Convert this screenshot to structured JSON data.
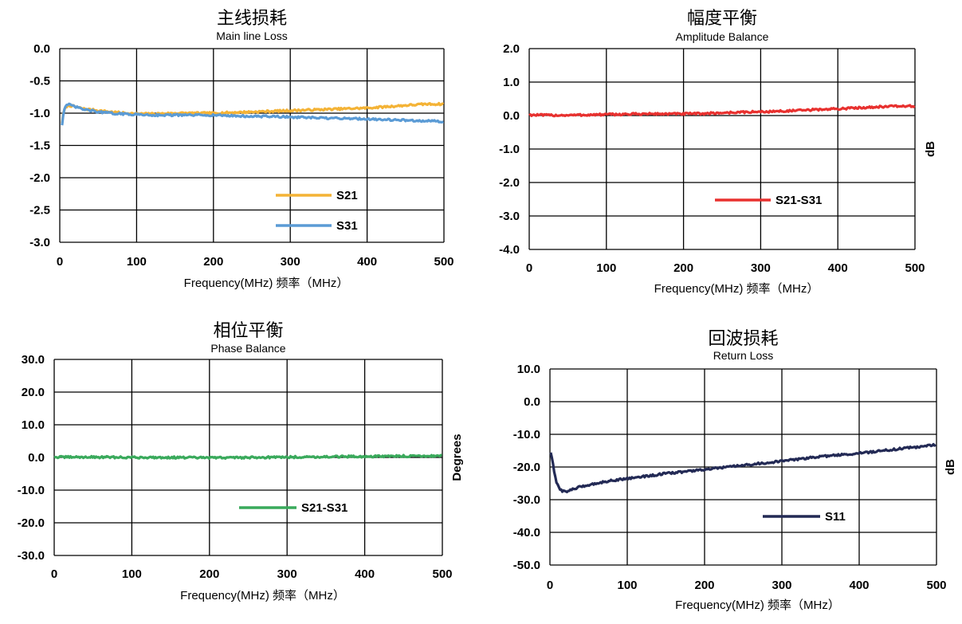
{
  "chart_data": [
    {
      "type": "line",
      "title": "主线损耗",
      "subtitle": "Main line Loss",
      "xlabel": "Frequency(MHz) 频率（MHz）",
      "ylabel": "",
      "xlim": [
        0,
        500
      ],
      "ylim": [
        -3.0,
        0.0
      ],
      "xticks": [
        "0",
        "100",
        "200",
        "300",
        "400",
        "500"
      ],
      "yticks": [
        "0.0",
        "-0.5",
        "-1.0",
        "-1.5",
        "-2.0",
        "-2.5",
        "-3.0"
      ],
      "grid": true,
      "legend_position": "bottom-right",
      "series": [
        {
          "name": "S21",
          "color": "#f4b336",
          "x": [
            3,
            5,
            8,
            12,
            20,
            30,
            50,
            75,
            100,
            125,
            150,
            175,
            200,
            225,
            250,
            275,
            300,
            325,
            350,
            375,
            400,
            425,
            450,
            475,
            500
          ],
          "y": [
            -1.15,
            -0.98,
            -0.9,
            -0.88,
            -0.9,
            -0.93,
            -0.96,
            -0.99,
            -1.01,
            -1.01,
            -1.0,
            -1.0,
            -1.0,
            -0.99,
            -0.98,
            -0.97,
            -0.96,
            -0.95,
            -0.94,
            -0.93,
            -0.92,
            -0.9,
            -0.88,
            -0.86,
            -0.86
          ]
        },
        {
          "name": "S31",
          "color": "#5b9bd5",
          "x": [
            3,
            5,
            8,
            12,
            20,
            30,
            50,
            75,
            100,
            125,
            150,
            175,
            200,
            225,
            250,
            275,
            300,
            325,
            350,
            375,
            400,
            425,
            450,
            475,
            500
          ],
          "y": [
            -1.18,
            -0.97,
            -0.88,
            -0.87,
            -0.9,
            -0.94,
            -0.98,
            -1.01,
            -1.02,
            -1.03,
            -1.03,
            -1.03,
            -1.03,
            -1.04,
            -1.05,
            -1.05,
            -1.06,
            -1.07,
            -1.08,
            -1.08,
            -1.09,
            -1.1,
            -1.11,
            -1.12,
            -1.13
          ]
        }
      ]
    },
    {
      "type": "line",
      "title": "幅度平衡",
      "subtitle": "Amplitude Balance",
      "xlabel": "Frequency(MHz) 频率（MHz）",
      "ylabel": "dB",
      "xlim": [
        0,
        500
      ],
      "ylim": [
        -4.0,
        2.0
      ],
      "xticks": [
        "0",
        "100",
        "200",
        "300",
        "400",
        "500"
      ],
      "yticks": [
        "2.0",
        "1.0",
        "0.0",
        "-1.0",
        "-2.0",
        "-3.0",
        "-4.0"
      ],
      "grid": true,
      "legend_position": "bottom-right",
      "series": [
        {
          "name": "S21-S31",
          "color": "#e8312f",
          "x": [
            0,
            25,
            50,
            75,
            100,
            125,
            150,
            175,
            200,
            225,
            250,
            275,
            300,
            325,
            350,
            375,
            400,
            425,
            450,
            475,
            500
          ],
          "y": [
            0.02,
            0.01,
            0.01,
            0.02,
            0.03,
            0.04,
            0.05,
            0.05,
            0.05,
            0.06,
            0.08,
            0.1,
            0.11,
            0.13,
            0.15,
            0.18,
            0.2,
            0.23,
            0.26,
            0.28,
            0.28
          ]
        }
      ]
    },
    {
      "type": "line",
      "title": "相位平衡",
      "subtitle": "Phase Balance",
      "xlabel": "Frequency(MHz) 频率（MHz）",
      "ylabel": "Degrees",
      "xlim": [
        0,
        500
      ],
      "ylim": [
        -30.0,
        30.0
      ],
      "xticks": [
        "0",
        "100",
        "200",
        "300",
        "400",
        "500"
      ],
      "yticks": [
        "30.0",
        "20.0",
        "10.0",
        "0.0",
        "-10.0",
        "-20.0",
        "-30.0"
      ],
      "grid": true,
      "legend_position": "bottom-right",
      "series": [
        {
          "name": "S21-S31",
          "color": "#3aaa5c",
          "x": [
            0,
            50,
            100,
            150,
            200,
            250,
            300,
            350,
            400,
            450,
            500
          ],
          "y": [
            0.1,
            0.1,
            0.0,
            0.0,
            -0.1,
            0.0,
            0.1,
            0.2,
            0.3,
            0.4,
            0.5
          ]
        }
      ]
    },
    {
      "type": "line",
      "title": "回波损耗",
      "subtitle": "Return Loss",
      "xlabel": "Frequency(MHz) 频率（MHz）",
      "ylabel": "dB",
      "xlim": [
        0,
        500
      ],
      "ylim": [
        -50.0,
        10.0
      ],
      "xticks": [
        "0",
        "100",
        "200",
        "300",
        "400",
        "500"
      ],
      "yticks": [
        "10.0",
        "0.0",
        "-10.0",
        "-20.0",
        "-30.0",
        "-40.0",
        "-50.0"
      ],
      "grid": true,
      "legend_position": "bottom-right",
      "series": [
        {
          "name": "S11",
          "color": "#232a55",
          "x": [
            1,
            3,
            5,
            8,
            12,
            16,
            20,
            25,
            30,
            40,
            50,
            75,
            100,
            125,
            150,
            200,
            250,
            300,
            350,
            400,
            450,
            500
          ],
          "y": [
            -15.5,
            -17.5,
            -21.0,
            -24.5,
            -26.5,
            -27.3,
            -27.5,
            -27.2,
            -26.8,
            -26.0,
            -25.5,
            -24.3,
            -23.5,
            -22.8,
            -22.0,
            -20.8,
            -19.5,
            -18.2,
            -16.8,
            -15.8,
            -14.5,
            -13.2
          ]
        }
      ]
    }
  ]
}
